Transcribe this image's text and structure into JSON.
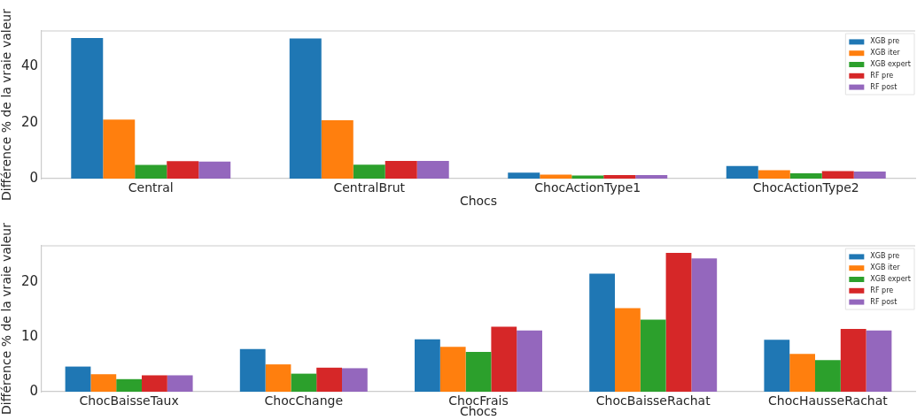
{
  "chart_data": [
    {
      "type": "bar",
      "xlabel": "Chocs",
      "ylabel": "Différence % de la vraie valeur",
      "categories": [
        "Central",
        "CentralBrut",
        "ChocActionType1",
        "ChocActionType2"
      ],
      "series": [
        {
          "name": "XGB pre",
          "color": "#1f77b4",
          "values": [
            50.2,
            50.0,
            2.1,
            4.5
          ]
        },
        {
          "name": "XGB iter",
          "color": "#ff7f0e",
          "values": [
            21.1,
            20.8,
            1.4,
            3.0
          ]
        },
        {
          "name": "XGB expert",
          "color": "#2ca02c",
          "values": [
            4.9,
            5.0,
            1.1,
            1.9
          ]
        },
        {
          "name": "RF pre",
          "color": "#d62728",
          "values": [
            6.2,
            6.3,
            1.3,
            2.7
          ]
        },
        {
          "name": "RF post",
          "color": "#9467bd",
          "values": [
            6.1,
            6.3,
            1.3,
            2.5
          ]
        }
      ],
      "ylim": [
        0,
        52.7
      ],
      "yticks": [
        0,
        20,
        40
      ],
      "legend": "top right"
    },
    {
      "type": "bar",
      "xlabel": "Chocs",
      "ylabel": "Différence % de la vraie valeur",
      "categories": [
        "ChocBaisseTaux",
        "ChocChange",
        "ChocFrais",
        "ChocBaisseRachat",
        "ChocHausseRachat"
      ],
      "series": [
        {
          "name": "XGB pre",
          "color": "#1f77b4",
          "values": [
            4.6,
            7.8,
            9.6,
            21.6,
            9.5
          ]
        },
        {
          "name": "XGB iter",
          "color": "#ff7f0e",
          "values": [
            3.2,
            5.0,
            8.2,
            15.3,
            6.9
          ]
        },
        {
          "name": "XGB expert",
          "color": "#2ca02c",
          "values": [
            2.3,
            3.3,
            7.3,
            13.2,
            5.8
          ]
        },
        {
          "name": "RF pre",
          "color": "#d62728",
          "values": [
            3.0,
            4.4,
            11.9,
            25.4,
            11.5
          ]
        },
        {
          "name": "RF post",
          "color": "#9467bd",
          "values": [
            3.0,
            4.3,
            11.2,
            24.4,
            11.2
          ]
        }
      ],
      "ylim": [
        0,
        26.7
      ],
      "yticks": [
        0,
        10,
        20
      ],
      "legend": "top right"
    }
  ]
}
